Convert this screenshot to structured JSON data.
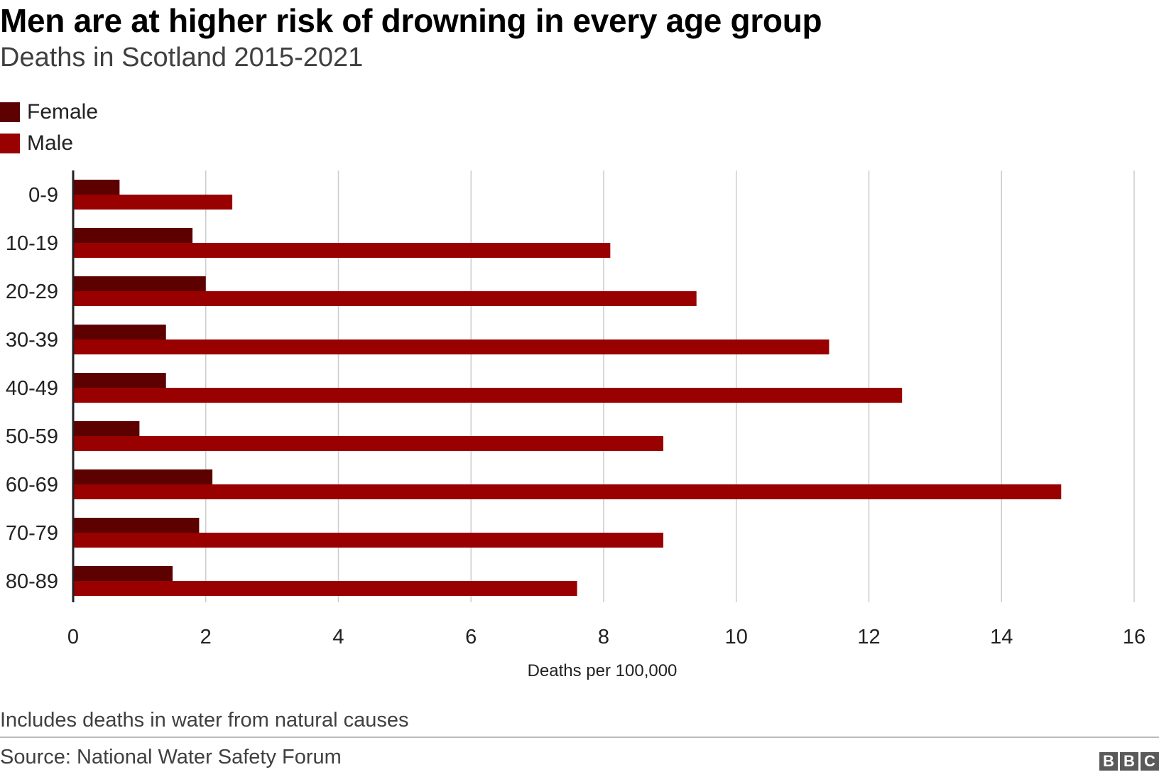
{
  "header": {
    "title": "Men are at higher risk of drowning in every age group",
    "subtitle": "Deaths in Scotland 2015-2021"
  },
  "legend": [
    {
      "label": "Female",
      "color": "#5c0000"
    },
    {
      "label": "Male",
      "color": "#990000"
    }
  ],
  "footer": {
    "note": "Includes deaths in water from natural causes",
    "source": "Source: National Water Safety Forum",
    "logo_letters": [
      "B",
      "B",
      "C"
    ]
  },
  "chart_data": {
    "type": "bar",
    "orientation": "horizontal",
    "title": "Men are at higher risk of drowning in every age group",
    "subtitle": "Deaths in Scotland 2015-2021",
    "xlabel": "Deaths per 100,000",
    "ylabel": "",
    "xlim": [
      0,
      16
    ],
    "xticks": [
      0,
      2,
      4,
      6,
      8,
      10,
      12,
      14,
      16
    ],
    "grid": true,
    "legend_position": "top-left",
    "categories": [
      "0-9",
      "10-19",
      "20-29",
      "30-39",
      "40-49",
      "50-59",
      "60-69",
      "70-79",
      "80-89"
    ],
    "series": [
      {
        "name": "Female",
        "color": "#5c0000",
        "values": [
          0.7,
          1.8,
          2.0,
          1.4,
          1.4,
          1.0,
          2.1,
          1.9,
          1.5
        ]
      },
      {
        "name": "Male",
        "color": "#990000",
        "values": [
          2.4,
          8.1,
          9.4,
          11.4,
          12.5,
          8.9,
          14.9,
          8.9,
          7.6
        ]
      }
    ]
  }
}
